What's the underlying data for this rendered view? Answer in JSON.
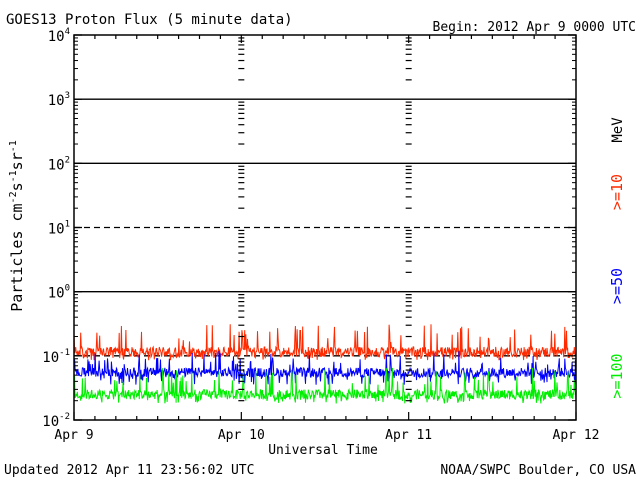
{
  "chart_data": {
    "type": "line",
    "title": "GOES13 Proton Flux (5 minute data)",
    "begin_label": "Begin: 2012 Apr 9 0000 UTC",
    "xlabel": "Universal Time",
    "ylabel": "Particles cm⁻²s⁻¹sr⁻¹",
    "ylabel_parts": {
      "base": "Particles cm",
      "sup1": "-2",
      "mid1": "s",
      "sup2": "-1",
      "mid2": "sr",
      "sup3": "-1"
    },
    "y_scale": "log",
    "ylim": [
      0.01,
      10000
    ],
    "y_ticks": [
      {
        "base": "10",
        "exp": "4"
      },
      {
        "base": "10",
        "exp": "3"
      },
      {
        "base": "10",
        "exp": "2"
      },
      {
        "base": "10",
        "exp": "1"
      },
      {
        "base": "10",
        "exp": "0"
      },
      {
        "base": "10",
        "exp": "-1"
      },
      {
        "base": "10",
        "exp": "-2"
      }
    ],
    "x_ticks": [
      "Apr 9",
      "Apr 10",
      "Apr 11",
      "Apr 12"
    ],
    "xlim": [
      "2012-04-09 00:00",
      "2012-04-12 00:00"
    ],
    "reference_lines": [
      {
        "y": 1000,
        "style": "solid"
      },
      {
        "y": 100,
        "style": "solid"
      },
      {
        "y": 10,
        "style": "dashed"
      },
      {
        "y": 1,
        "style": "solid"
      },
      {
        "y": 0.1,
        "style": "dashed"
      }
    ],
    "legend_placement": "right",
    "legend_unit": "MeV",
    "series": [
      {
        "name": ">=10",
        "color": "#ff2a00",
        "median": 0.115,
        "min": 0.085,
        "max": 0.32
      },
      {
        "name": ">=50",
        "color": "#0000ff",
        "median": 0.055,
        "min": 0.035,
        "max": 0.12
      },
      {
        "name": ">=100",
        "color": "#00ee00",
        "median": 0.025,
        "min": 0.018,
        "max": 0.065
      }
    ]
  },
  "footer": {
    "updated": "Updated 2012 Apr 11 23:56:02 UTC",
    "credit": "NOAA/SWPC Boulder, CO USA"
  }
}
